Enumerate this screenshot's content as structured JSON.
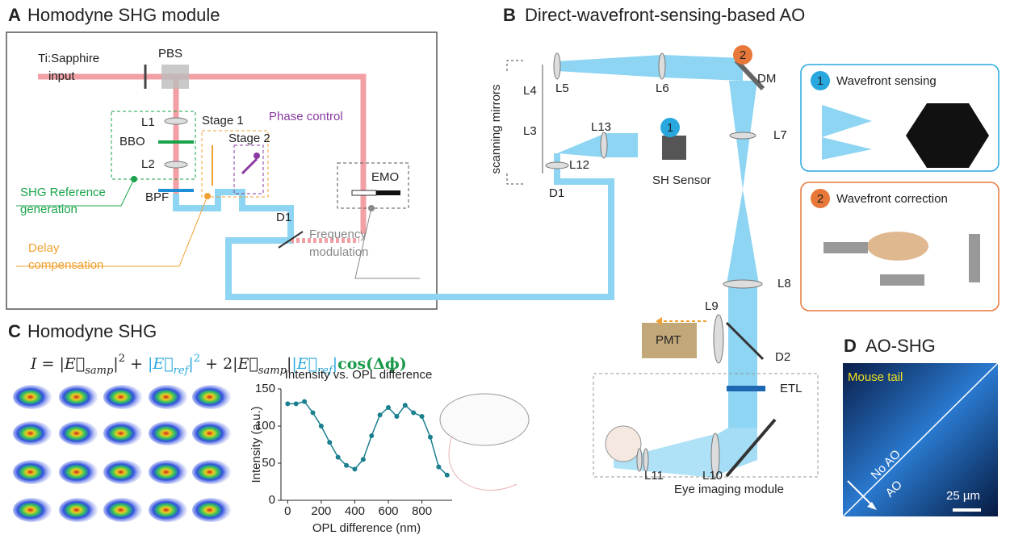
{
  "panel_a": {
    "letter": "A",
    "title": "Homodyne SHG module",
    "labels": [
      "Ti:Sapphire",
      "input",
      "PBS",
      "L1",
      "BBO",
      "L2",
      "BPF",
      "Stage 1",
      "Stage 2",
      "Phase control",
      "SHG Reference",
      "generation",
      "Delay",
      "compensation",
      "D1",
      "EMO",
      "Frequency",
      "modulation"
    ]
  },
  "panel_b": {
    "letter": "B",
    "title": "Direct-wavefront-sensing-based AO",
    "labels": [
      "scanning mirrors",
      "L5",
      "L6",
      "L4",
      "DM",
      "L13",
      "L3",
      "L12",
      "L7",
      "D1",
      "SH Sensor",
      "L8",
      "L9",
      "PMT",
      "D2",
      "ETL",
      "L11",
      "L10",
      "Eye imaging module"
    ],
    "markers": [
      "1",
      "2"
    ],
    "insets": [
      "Wavefront sensing",
      "Wavefront correction"
    ]
  },
  "panel_c": {
    "letter": "C",
    "title": "Homodyne SHG",
    "equation": [
      "I",
      " = |",
      "E⃗",
      "samp",
      "|",
      "2",
      " + ",
      "|",
      "E⃗",
      "ref",
      "|",
      "2",
      " + 2|",
      "E⃗",
      "samp",
      "|",
      "|",
      "E⃗",
      "ref",
      "|",
      "cos(Δϕ)"
    ]
  },
  "panel_d": {
    "letter": "D",
    "title": "AO-SHG",
    "labels": [
      "Mouse tail",
      "No AO",
      "AO",
      "25 µm"
    ]
  },
  "chart_data": {
    "type": "line",
    "title": "Intensity vs. OPL difference",
    "x_label": "OPL difference (nm)",
    "y_label": "Intensity (a.u.)",
    "x": [
      0,
      50,
      100,
      150,
      200,
      250,
      300,
      350,
      400,
      450,
      500,
      550,
      600,
      650,
      700,
      750,
      800,
      850,
      900,
      950
    ],
    "values": [
      130,
      130,
      133,
      118,
      100,
      78,
      58,
      47,
      42,
      55,
      87,
      115,
      125,
      113,
      128,
      118,
      113,
      85,
      45,
      34
    ],
    "color": "#1a7f8e",
    "xlim": [
      -40,
      980
    ],
    "ylim": [
      0,
      150
    ],
    "xticks": [
      0,
      200,
      400,
      600,
      800
    ],
    "yticks": [
      0,
      50,
      100,
      150
    ]
  }
}
